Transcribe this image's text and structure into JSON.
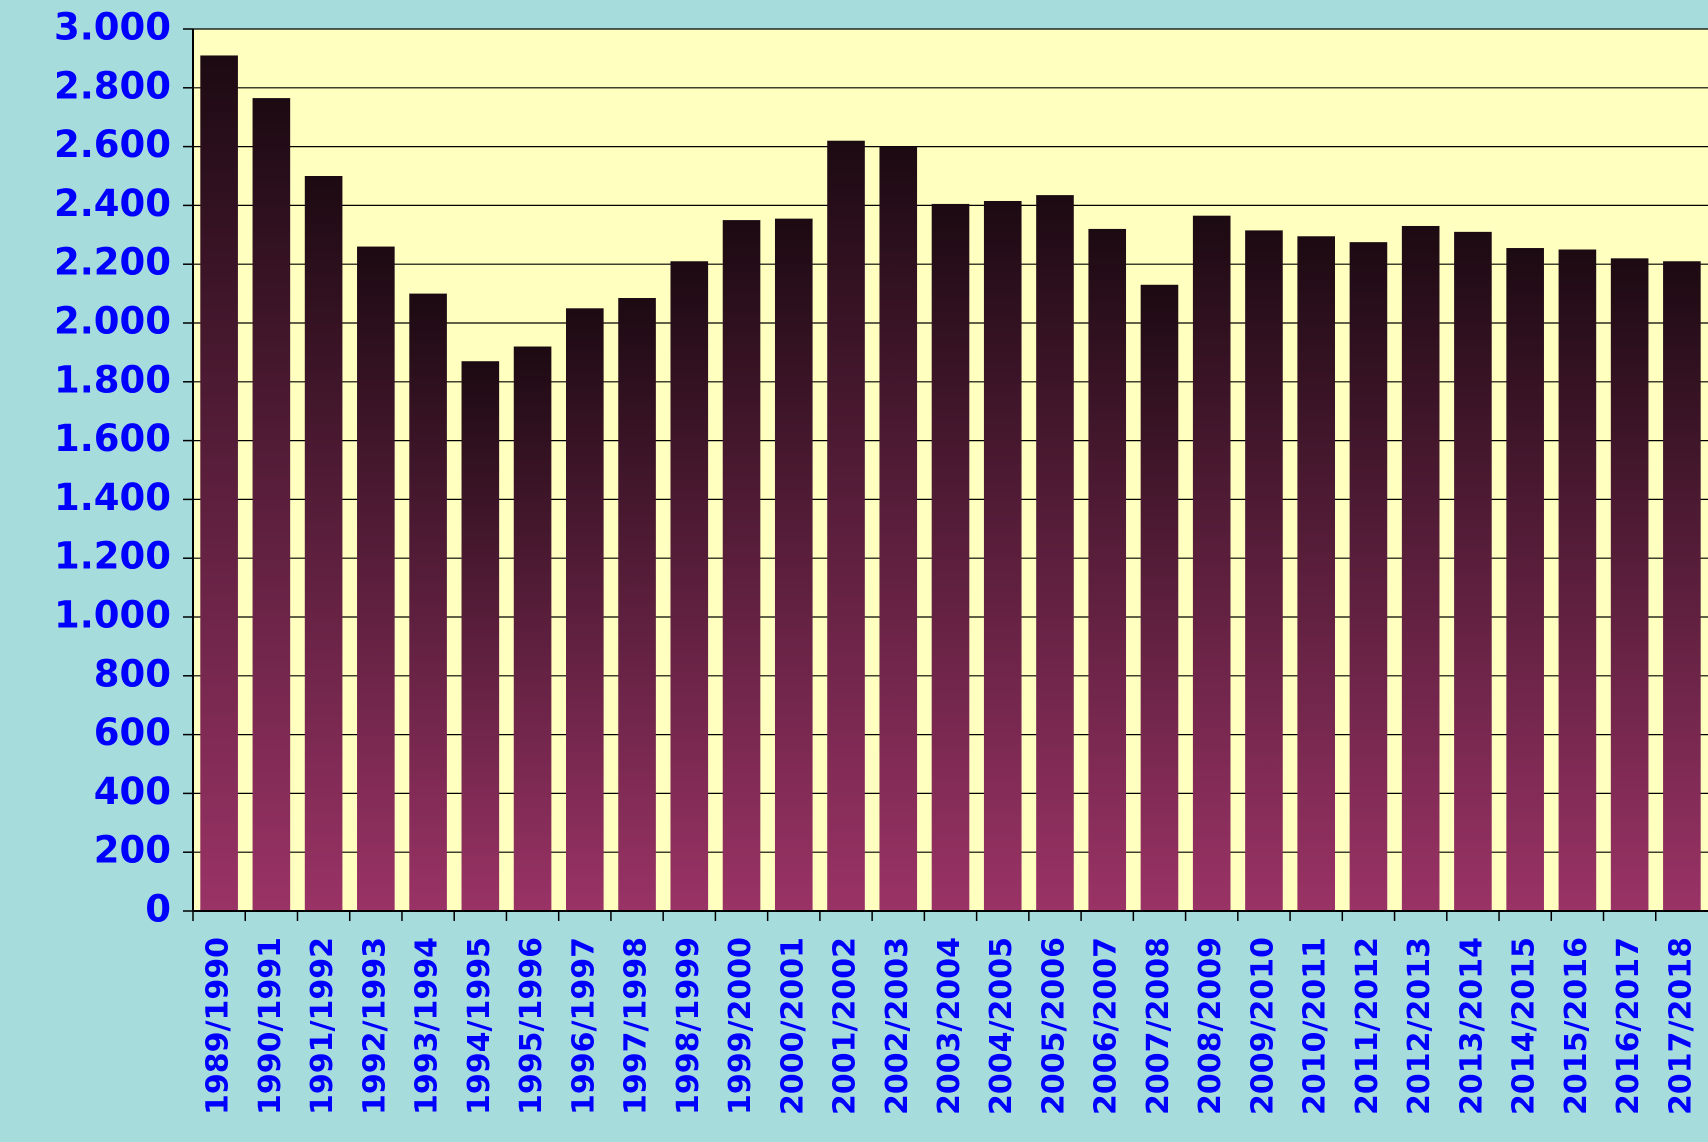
{
  "chart_data": {
    "type": "bar",
    "categories": [
      "1989/1990",
      "1990/1991",
      "1991/1992",
      "1992/1993",
      "1993/1994",
      "1994/1995",
      "1995/1996",
      "1996/1997",
      "1997/1998",
      "1998/1999",
      "1999/2000",
      "2000/2001",
      "2001/2002",
      "2002/2003",
      "2003/2004",
      "2004/2005",
      "2005/2006",
      "2006/2007",
      "2007/2008",
      "2008/2009",
      "2009/2010",
      "2010/2011",
      "2011/2012",
      "2012/2013",
      "2013/2014",
      "2014/2015",
      "2015/2016",
      "2016/2017",
      "2017/2018"
    ],
    "values": [
      2910,
      2765,
      2500,
      2260,
      2100,
      1870,
      1920,
      2050,
      2085,
      2210,
      2350,
      2355,
      2620,
      2600,
      2405,
      2415,
      2435,
      2320,
      2130,
      2365,
      2315,
      2295,
      2275,
      2330,
      2310,
      2255,
      2250,
      2220,
      2210
    ],
    "color": "#9a3366",
    "ylim": [
      0,
      3000
    ],
    "yticks": [
      0,
      200,
      400,
      600,
      800,
      {
        "value": 1000,
        "label": "1.000"
      },
      {
        "value": 1200,
        "label": "1.200"
      },
      {
        "value": 1400,
        "label": "1.400"
      },
      {
        "value": 1600,
        "label": "1.600"
      },
      {
        "value": 1800,
        "label": "1.800"
      },
      {
        "value": 2000,
        "label": "2.000"
      },
      {
        "value": 2200,
        "label": "2.200"
      },
      {
        "value": 2400,
        "label": "2.400"
      },
      {
        "value": 2600,
        "label": "2.600"
      },
      {
        "value": 2800,
        "label": "2.800"
      },
      {
        "value": 3000,
        "label": "3.000"
      }
    ],
    "grid": true
  }
}
